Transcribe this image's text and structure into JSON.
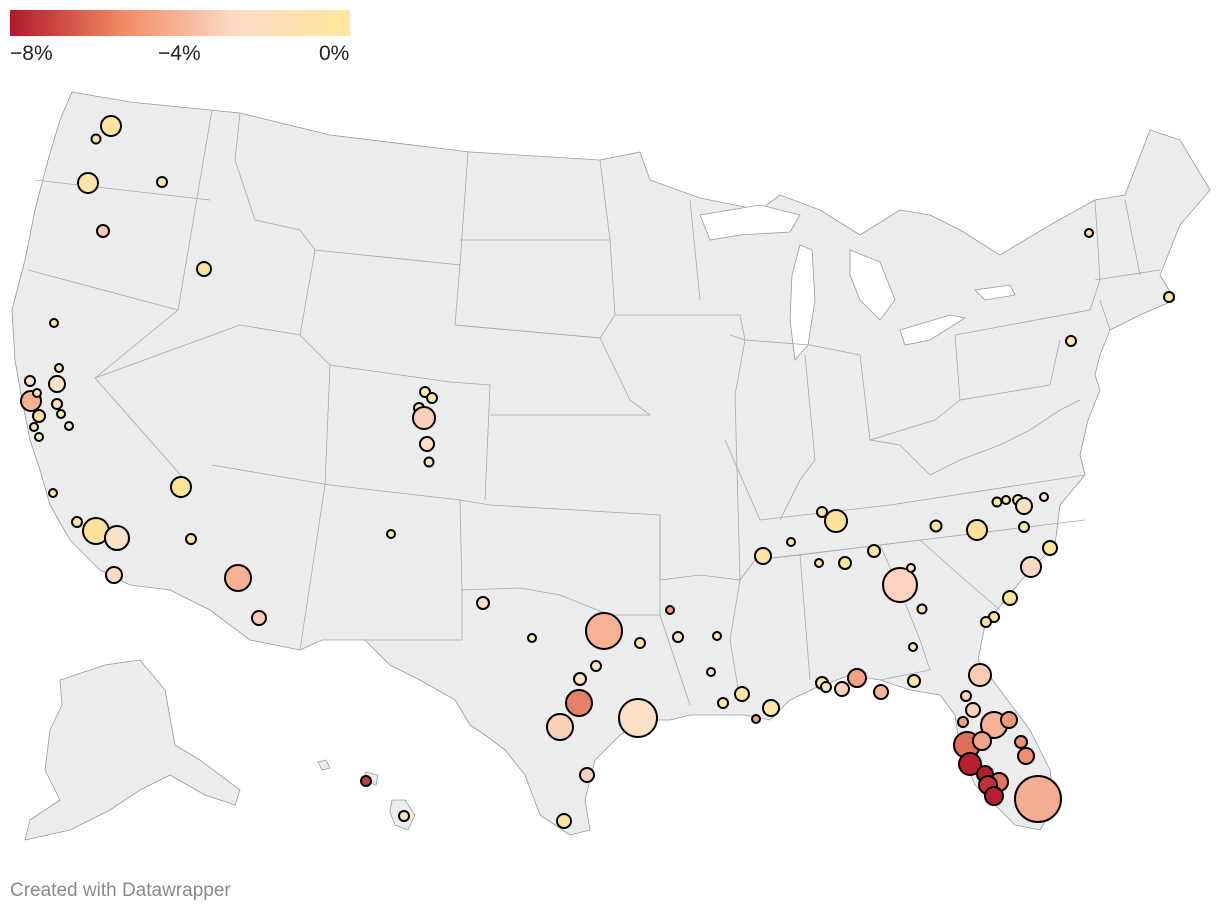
{
  "legend": {
    "tick_min": "−8%",
    "tick_mid": "−4%",
    "tick_max": "0%",
    "color_min": "#b2182b",
    "color_mid": "#ef8a62",
    "color_low": "#fddbc7",
    "color_max": "#fee79a",
    "domain": [
      -8,
      0
    ]
  },
  "credit": "Created with Datawrapper",
  "colors": {
    "land": "#ececec",
    "state_border": "#9a9a9a",
    "dot_stroke": "#000000"
  }
}
